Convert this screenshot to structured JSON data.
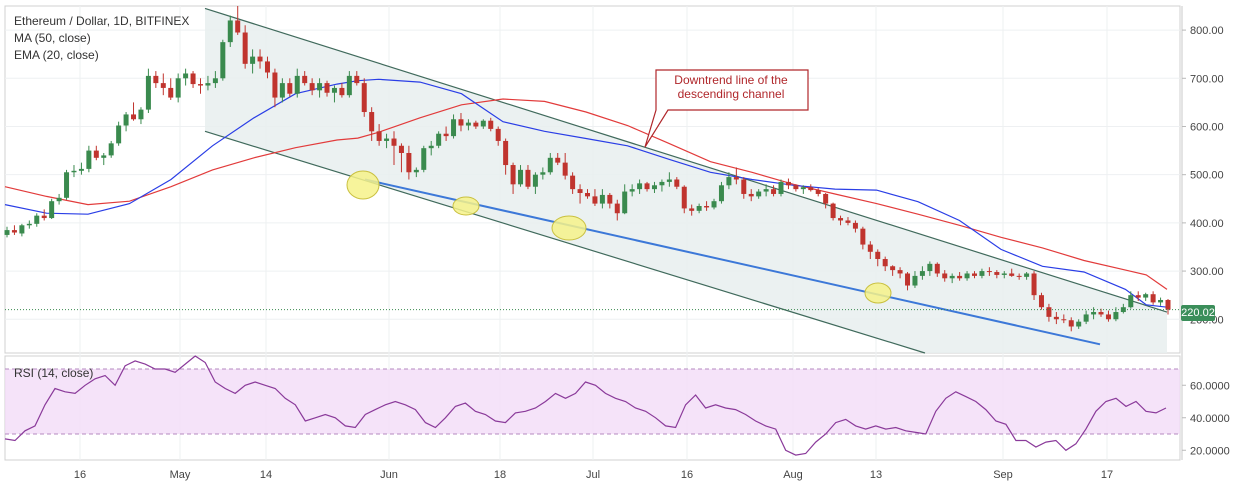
{
  "header": {
    "title": "Ethereum / Dollar, 1D, BITFINEX",
    "ma_label": "MA (50, close)",
    "ema_label": "EMA (20, close)"
  },
  "annotation": {
    "line1": "Downtrend line of the",
    "line2": "descending channel"
  },
  "rsi_panel": {
    "title": "RSI (14, close)"
  },
  "last_price": "220.02",
  "colors": {
    "up_candle": "#3a8a4e",
    "down_candle": "#c0342e",
    "ma50": "#e23b3b",
    "ema20": "#2a3ee6",
    "channel_fill": "#e8eeee",
    "channel_line": "#406a5c",
    "support_line": "#3c78d8",
    "highlight": "#f6f28a",
    "rsi_line": "#8a3a9a",
    "rsi_band": "#f2dcf8",
    "annotation": "#b0272b",
    "price_tag": "#3b8e5a"
  },
  "chart_data": {
    "type": "candlestick",
    "title": "Ethereum / Dollar, 1D, BITFINEX",
    "price_axis": {
      "ticks": [
        "800.00",
        "700.00",
        "600.00",
        "500.00",
        "400.00",
        "300.00",
        "200.00"
      ],
      "range": [
        130,
        850
      ]
    },
    "rsi_axis": {
      "ticks": [
        "60.0000",
        "40.0000",
        "20.0000"
      ],
      "range": [
        14,
        78
      ],
      "band": [
        30,
        70
      ]
    },
    "x_ticks": [
      "16",
      "May",
      "14",
      "Jun",
      "18",
      "Jul",
      "16",
      "Aug",
      "13",
      "Sep",
      "17"
    ],
    "ohlc": [
      [
        375,
        392,
        370,
        385
      ],
      [
        385,
        395,
        375,
        380
      ],
      [
        378,
        398,
        372,
        395
      ],
      [
        395,
        405,
        388,
        398
      ],
      [
        398,
        420,
        392,
        415
      ],
      [
        415,
        428,
        405,
        410
      ],
      [
        410,
        450,
        408,
        445
      ],
      [
        445,
        460,
        438,
        452
      ],
      [
        452,
        510,
        448,
        505
      ],
      [
        505,
        520,
        495,
        508
      ],
      [
        508,
        525,
        500,
        512
      ],
      [
        512,
        560,
        505,
        550
      ],
      [
        550,
        560,
        530,
        535
      ],
      [
        535,
        545,
        520,
        540
      ],
      [
        540,
        570,
        535,
        565
      ],
      [
        565,
        610,
        560,
        602
      ],
      [
        602,
        630,
        590,
        625
      ],
      [
        625,
        650,
        612,
        615
      ],
      [
        615,
        640,
        605,
        635
      ],
      [
        635,
        720,
        628,
        705
      ],
      [
        705,
        715,
        680,
        690
      ],
      [
        690,
        710,
        665,
        680
      ],
      [
        680,
        700,
        655,
        660
      ],
      [
        660,
        710,
        650,
        700
      ],
      [
        700,
        720,
        685,
        710
      ],
      [
        710,
        715,
        680,
        688
      ],
      [
        688,
        700,
        668,
        685
      ],
      [
        685,
        705,
        675,
        690
      ],
      [
        690,
        715,
        680,
        700
      ],
      [
        700,
        780,
        695,
        775
      ],
      [
        775,
        830,
        765,
        820
      ],
      [
        820,
        850,
        790,
        795
      ],
      [
        795,
        810,
        720,
        730
      ],
      [
        730,
        760,
        710,
        745
      ],
      [
        745,
        760,
        720,
        735
      ],
      [
        735,
        745,
        700,
        712
      ],
      [
        712,
        720,
        640,
        660
      ],
      [
        660,
        700,
        650,
        690
      ],
      [
        690,
        700,
        662,
        668
      ],
      [
        668,
        720,
        660,
        705
      ],
      [
        705,
        715,
        685,
        690
      ],
      [
        690,
        700,
        665,
        675
      ],
      [
        675,
        700,
        660,
        690
      ],
      [
        690,
        695,
        662,
        670
      ],
      [
        670,
        685,
        650,
        680
      ],
      [
        680,
        690,
        660,
        665
      ],
      [
        665,
        715,
        660,
        705
      ],
      [
        705,
        715,
        685,
        690
      ],
      [
        690,
        700,
        620,
        630
      ],
      [
        630,
        640,
        570,
        590
      ],
      [
        590,
        605,
        560,
        570
      ],
      [
        570,
        585,
        555,
        575
      ],
      [
        575,
        590,
        520,
        560
      ],
      [
        560,
        565,
        505,
        545
      ],
      [
        545,
        560,
        490,
        505
      ],
      [
        505,
        515,
        495,
        510
      ],
      [
        510,
        560,
        505,
        555
      ],
      [
        555,
        570,
        540,
        560
      ],
      [
        560,
        590,
        555,
        585
      ],
      [
        585,
        600,
        570,
        580
      ],
      [
        580,
        625,
        575,
        615
      ],
      [
        615,
        628,
        590,
        602
      ],
      [
        602,
        615,
        592,
        608
      ],
      [
        608,
        612,
        595,
        600
      ],
      [
        600,
        615,
        595,
        612
      ],
      [
        612,
        618,
        590,
        595
      ],
      [
        595,
        600,
        560,
        570
      ],
      [
        570,
        575,
        500,
        520
      ],
      [
        520,
        525,
        460,
        480
      ],
      [
        480,
        520,
        475,
        510
      ],
      [
        510,
        520,
        470,
        475
      ],
      [
        475,
        505,
        460,
        500
      ],
      [
        500,
        515,
        490,
        505
      ],
      [
        505,
        545,
        500,
        535
      ],
      [
        535,
        545,
        520,
        525
      ],
      [
        525,
        545,
        490,
        498
      ],
      [
        498,
        505,
        460,
        470
      ],
      [
        470,
        480,
        440,
        462
      ],
      [
        462,
        470,
        450,
        455
      ],
      [
        455,
        470,
        435,
        440
      ],
      [
        440,
        470,
        430,
        458
      ],
      [
        458,
        462,
        430,
        440
      ],
      [
        440,
        448,
        405,
        420
      ],
      [
        420,
        480,
        418,
        465
      ],
      [
        465,
        480,
        455,
        470
      ],
      [
        470,
        490,
        460,
        482
      ],
      [
        482,
        485,
        465,
        470
      ],
      [
        470,
        485,
        462,
        478
      ],
      [
        478,
        490,
        465,
        485
      ],
      [
        485,
        505,
        475,
        490
      ],
      [
        490,
        495,
        470,
        475
      ],
      [
        475,
        478,
        420,
        430
      ],
      [
        430,
        438,
        415,
        425
      ],
      [
        425,
        440,
        420,
        435
      ],
      [
        435,
        445,
        425,
        432
      ],
      [
        432,
        450,
        428,
        445
      ],
      [
        445,
        485,
        440,
        478
      ],
      [
        478,
        505,
        470,
        495
      ],
      [
        495,
        515,
        480,
        490
      ],
      [
        490,
        495,
        450,
        460
      ],
      [
        460,
        470,
        445,
        455
      ],
      [
        455,
        470,
        450,
        465
      ],
      [
        465,
        480,
        455,
        470
      ],
      [
        470,
        478,
        455,
        460
      ],
      [
        460,
        490,
        455,
        485
      ],
      [
        485,
        492,
        470,
        478
      ],
      [
        478,
        480,
        465,
        470
      ],
      [
        470,
        478,
        460,
        474
      ],
      [
        474,
        480,
        465,
        468
      ],
      [
        468,
        472,
        455,
        460
      ],
      [
        460,
        462,
        430,
        440
      ],
      [
        440,
        442,
        405,
        410
      ],
      [
        410,
        415,
        395,
        405
      ],
      [
        405,
        412,
        395,
        400
      ],
      [
        400,
        405,
        380,
        388
      ],
      [
        388,
        392,
        345,
        355
      ],
      [
        355,
        362,
        325,
        340
      ],
      [
        340,
        345,
        310,
        325
      ],
      [
        325,
        330,
        300,
        310
      ],
      [
        310,
        312,
        290,
        302
      ],
      [
        302,
        308,
        285,
        295
      ],
      [
        295,
        298,
        260,
        270
      ],
      [
        270,
        300,
        265,
        290
      ],
      [
        290,
        310,
        282,
        300
      ],
      [
        300,
        320,
        290,
        315
      ],
      [
        315,
        318,
        288,
        295
      ],
      [
        295,
        302,
        278,
        285
      ],
      [
        285,
        295,
        275,
        290
      ],
      [
        290,
        298,
        280,
        285
      ],
      [
        285,
        300,
        280,
        295
      ],
      [
        295,
        300,
        285,
        290
      ],
      [
        290,
        305,
        285,
        300
      ],
      [
        300,
        308,
        290,
        298
      ],
      [
        298,
        302,
        285,
        292
      ],
      [
        292,
        300,
        285,
        295
      ],
      [
        295,
        305,
        288,
        290
      ],
      [
        290,
        295,
        282,
        288
      ],
      [
        288,
        298,
        282,
        295
      ],
      [
        295,
        300,
        240,
        250
      ],
      [
        250,
        255,
        220,
        225
      ],
      [
        225,
        232,
        195,
        205
      ],
      [
        205,
        215,
        190,
        200
      ],
      [
        200,
        210,
        192,
        198
      ],
      [
        198,
        204,
        175,
        185
      ],
      [
        185,
        200,
        180,
        195
      ],
      [
        195,
        218,
        190,
        210
      ],
      [
        210,
        225,
        200,
        215
      ],
      [
        215,
        222,
        205,
        210
      ],
      [
        210,
        218,
        195,
        200
      ],
      [
        200,
        225,
        196,
        215
      ],
      [
        215,
        232,
        212,
        225
      ],
      [
        225,
        258,
        222,
        250
      ],
      [
        250,
        258,
        238,
        245
      ],
      [
        245,
        255,
        238,
        252
      ],
      [
        252,
        258,
        230,
        235
      ],
      [
        235,
        245,
        228,
        240
      ],
      [
        240,
        242,
        210,
        220
      ]
    ],
    "ma50": [
      [
        0,
        475
      ],
      [
        0.04,
        455
      ],
      [
        0.08,
        438
      ],
      [
        0.12,
        445
      ],
      [
        0.16,
        475
      ],
      [
        0.2,
        510
      ],
      [
        0.24,
        535
      ],
      [
        0.28,
        556
      ],
      [
        0.32,
        572
      ],
      [
        0.34,
        576
      ],
      [
        0.36,
        588
      ],
      [
        0.4,
        618
      ],
      [
        0.44,
        645
      ],
      [
        0.48,
        657
      ],
      [
        0.52,
        652
      ],
      [
        0.56,
        630
      ],
      [
        0.6,
        602
      ],
      [
        0.64,
        565
      ],
      [
        0.68,
        527
      ],
      [
        0.72,
        505
      ],
      [
        0.76,
        480
      ],
      [
        0.8,
        460
      ],
      [
        0.84,
        440
      ],
      [
        0.88,
        418
      ],
      [
        0.92,
        395
      ],
      [
        0.96,
        370
      ],
      [
        1.0,
        348
      ],
      [
        1.04,
        322
      ],
      [
        1.08,
        302
      ],
      [
        1.1,
        292
      ],
      [
        1.12,
        262
      ]
    ],
    "ema20": [
      [
        0,
        438
      ],
      [
        0.04,
        420
      ],
      [
        0.08,
        418
      ],
      [
        0.12,
        440
      ],
      [
        0.16,
        490
      ],
      [
        0.2,
        560
      ],
      [
        0.24,
        618
      ],
      [
        0.28,
        668
      ],
      [
        0.32,
        688
      ],
      [
        0.34,
        695
      ],
      [
        0.36,
        698
      ],
      [
        0.4,
        692
      ],
      [
        0.44,
        668
      ],
      [
        0.48,
        610
      ],
      [
        0.52,
        590
      ],
      [
        0.56,
        575
      ],
      [
        0.6,
        560
      ],
      [
        0.64,
        532
      ],
      [
        0.68,
        505
      ],
      [
        0.72,
        490
      ],
      [
        0.76,
        478
      ],
      [
        0.8,
        470
      ],
      [
        0.84,
        468
      ],
      [
        0.88,
        444
      ],
      [
        0.92,
        405
      ],
      [
        0.96,
        345
      ],
      [
        1.0,
        310
      ],
      [
        1.04,
        298
      ],
      [
        1.08,
        262
      ],
      [
        1.1,
        230
      ],
      [
        1.12,
        225
      ]
    ],
    "rsi": [
      27,
      26,
      32,
      35,
      48,
      58,
      56,
      55,
      60,
      64,
      66,
      60,
      72,
      75,
      73,
      70,
      70,
      68,
      73,
      78,
      74,
      62,
      58,
      55,
      60,
      62,
      60,
      58,
      52,
      48,
      38,
      40,
      42,
      40,
      35,
      34,
      42,
      45,
      48,
      50,
      48,
      45,
      37,
      34,
      40,
      47,
      49,
      44,
      42,
      38,
      37,
      43,
      44,
      46,
      50,
      55,
      52,
      55,
      62,
      60,
      55,
      52,
      50,
      46,
      44,
      40,
      35,
      34,
      48,
      54,
      46,
      48,
      46,
      45,
      42,
      38,
      35,
      33,
      20,
      17,
      18,
      25,
      30,
      37,
      39,
      35,
      33,
      35,
      33,
      34,
      32,
      31,
      30,
      44,
      52,
      56,
      53,
      50,
      45,
      38,
      36,
      26,
      26,
      22,
      25,
      26,
      20,
      24,
      33,
      44,
      50,
      52,
      47,
      50,
      44,
      43,
      46
    ],
    "annotations": [
      "Downtrend line of the descending channel"
    ]
  }
}
